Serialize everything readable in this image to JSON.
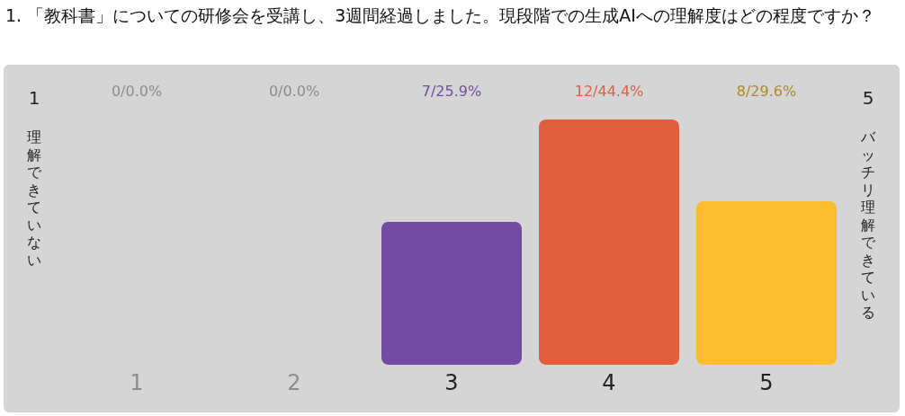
{
  "chart_data": {
    "type": "bar",
    "title": "1. 「教科書」についての研修会を受講し、3週間経過しました。現段階での生成AIへの理解度はどの程度ですか？",
    "categories": [
      "1",
      "2",
      "3",
      "4",
      "5"
    ],
    "values": [
      0,
      0,
      7,
      12,
      8
    ],
    "value_labels": [
      "0/0.0%",
      "0/0.0%",
      "7/25.9%",
      "12/44.4%",
      "8/29.6%"
    ],
    "colors": [
      "#8c8c8c",
      "#8c8c8c",
      "#754aa2",
      "#e05f3a",
      "#fdbc2e"
    ],
    "annotations": [
      "1",
      "理解できていない",
      "5",
      "バッチリ理解できている"
    ]
  }
}
